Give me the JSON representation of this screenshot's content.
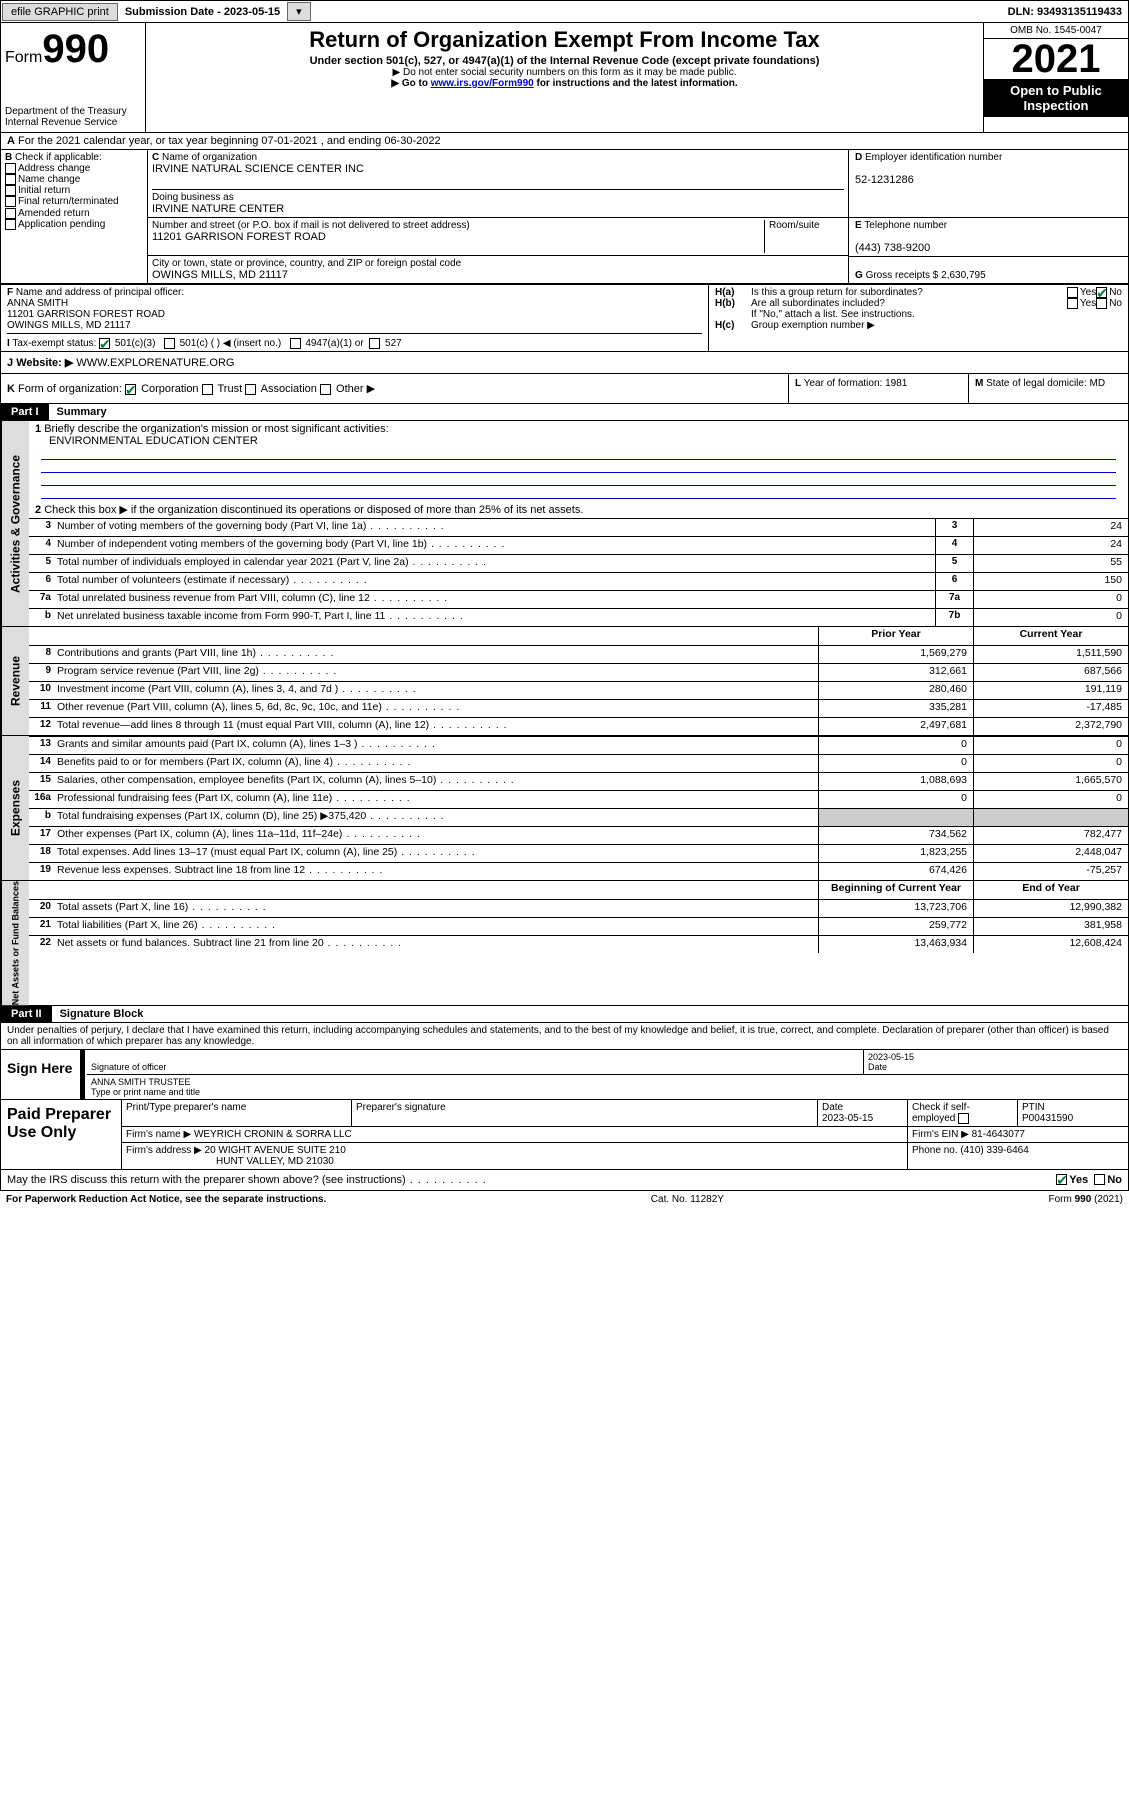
{
  "top": {
    "efile": "efile GRAPHIC print",
    "subdate_lbl": "Submission Date - 2023-05-15",
    "dln": "DLN: 93493135119433"
  },
  "header": {
    "form_label": "Form",
    "form_num": "990",
    "title": "Return of Organization Exempt From Income Tax",
    "sub1": "Under section 501(c), 527, or 4947(a)(1) of the Internal Revenue Code (except private foundations)",
    "sub2": "Do not enter social security numbers on this form as it may be made public.",
    "sub3": "Go to ",
    "sub3_link": "www.irs.gov/Form990",
    "sub3_tail": " for instructions and the latest information.",
    "dept": "Department of the Treasury",
    "irs": "Internal Revenue Service",
    "omb": "OMB No. 1545-0047",
    "year": "2021",
    "otp": "Open to Public Inspection"
  },
  "A": {
    "text": "For the 2021 calendar year, or tax year beginning 07-01-2021   , and ending 06-30-2022"
  },
  "B": {
    "label": "Check if applicable:",
    "items": [
      "Address change",
      "Name change",
      "Initial return",
      "Final return/terminated",
      "Amended return",
      "Application pending"
    ]
  },
  "C": {
    "name_lbl": "Name of organization",
    "name": "IRVINE NATURAL SCIENCE CENTER INC",
    "dba_lbl": "Doing business as",
    "dba": "IRVINE NATURE CENTER",
    "addr_lbl": "Number and street (or P.O. box if mail is not delivered to street address)",
    "room_lbl": "Room/suite",
    "addr": "11201 GARRISON FOREST ROAD",
    "city_lbl": "City or town, state or province, country, and ZIP or foreign postal code",
    "city": "OWINGS MILLS, MD  21117"
  },
  "D": {
    "lbl": "Employer identification number",
    "val": "52-1231286"
  },
  "E": {
    "lbl": "Telephone number",
    "val": "(443) 738-9200"
  },
  "G": {
    "lbl": "Gross receipts $",
    "val": "2,630,795"
  },
  "F": {
    "lbl": "Name and address of principal officer:",
    "name": "ANNA SMITH",
    "addr1": "11201 GARRISON FOREST ROAD",
    "addr2": "OWINGS MILLS, MD  21117"
  },
  "H": {
    "a": "Is this a group return for subordinates?",
    "yes": "Yes",
    "no": "No",
    "b": "Are all subordinates included?",
    "b2": "If \"No,\" attach a list. See instructions.",
    "c": "Group exemption number ▶"
  },
  "I": {
    "lbl": "Tax-exempt status:",
    "o1": "501(c)(3)",
    "o2": "501(c) (  ) ◀ (insert no.)",
    "o3": "4947(a)(1) or",
    "o4": "527"
  },
  "J": {
    "lbl": "Website: ▶",
    "val": "WWW.EXPLORENATURE.ORG"
  },
  "K": {
    "lbl": "Form of organization:",
    "o1": "Corporation",
    "o2": "Trust",
    "o3": "Association",
    "o4": "Other ▶"
  },
  "L": {
    "lbl": "Year of formation:",
    "val": "1981"
  },
  "M": {
    "lbl": "State of legal domicile:",
    "val": "MD"
  },
  "part1": {
    "title": "Part I",
    "subtitle": "Summary",
    "l1": "Briefly describe the organization's mission or most significant activities:",
    "l1v": "ENVIRONMENTAL EDUCATION CENTER",
    "l2": "Check this box ▶          if the organization discontinued its operations or disposed of more than 25% of its net assets.",
    "rows_gov": [
      {
        "n": "3",
        "t": "Number of voting members of the governing body (Part VI, line 1a)",
        "c": "3",
        "v": "24"
      },
      {
        "n": "4",
        "t": "Number of independent voting members of the governing body (Part VI, line 1b)",
        "c": "4",
        "v": "24"
      },
      {
        "n": "5",
        "t": "Total number of individuals employed in calendar year 2021 (Part V, line 2a)",
        "c": "5",
        "v": "55"
      },
      {
        "n": "6",
        "t": "Total number of volunteers (estimate if necessary)",
        "c": "6",
        "v": "150"
      },
      {
        "n": "7a",
        "t": "Total unrelated business revenue from Part VIII, column (C), line 12",
        "c": "7a",
        "v": "0"
      },
      {
        "n": "b",
        "t": "Net unrelated business taxable income from Form 990-T, Part I, line 11",
        "c": "7b",
        "v": "0"
      }
    ],
    "hdr_prior": "Prior Year",
    "hdr_curr": "Current Year",
    "rows_rev": [
      {
        "n": "8",
        "t": "Contributions and grants (Part VIII, line 1h)",
        "p": "1,569,279",
        "c": "1,511,590"
      },
      {
        "n": "9",
        "t": "Program service revenue (Part VIII, line 2g)",
        "p": "312,661",
        "c": "687,566"
      },
      {
        "n": "10",
        "t": "Investment income (Part VIII, column (A), lines 3, 4, and 7d )",
        "p": "280,460",
        "c": "191,119"
      },
      {
        "n": "11",
        "t": "Other revenue (Part VIII, column (A), lines 5, 6d, 8c, 9c, 10c, and 11e)",
        "p": "335,281",
        "c": "-17,485"
      },
      {
        "n": "12",
        "t": "Total revenue—add lines 8 through 11 (must equal Part VIII, column (A), line 12)",
        "p": "2,497,681",
        "c": "2,372,790"
      }
    ],
    "rows_exp": [
      {
        "n": "13",
        "t": "Grants and similar amounts paid (Part IX, column (A), lines 1–3 )",
        "p": "0",
        "c": "0"
      },
      {
        "n": "14",
        "t": "Benefits paid to or for members (Part IX, column (A), line 4)",
        "p": "0",
        "c": "0"
      },
      {
        "n": "15",
        "t": "Salaries, other compensation, employee benefits (Part IX, column (A), lines 5–10)",
        "p": "1,088,693",
        "c": "1,665,570"
      },
      {
        "n": "16a",
        "t": "Professional fundraising fees (Part IX, column (A), line 11e)",
        "p": "0",
        "c": "0"
      },
      {
        "n": "b",
        "t": "Total fundraising expenses (Part IX, column (D), line 25) ▶375,420",
        "p": "",
        "c": "",
        "sh": true
      },
      {
        "n": "17",
        "t": "Other expenses (Part IX, column (A), lines 11a–11d, 11f–24e)",
        "p": "734,562",
        "c": "782,477"
      },
      {
        "n": "18",
        "t": "Total expenses. Add lines 13–17 (must equal Part IX, column (A), line 25)",
        "p": "1,823,255",
        "c": "2,448,047"
      },
      {
        "n": "19",
        "t": "Revenue less expenses. Subtract line 18 from line 12",
        "p": "674,426",
        "c": "-75,257"
      }
    ],
    "hdr_beg": "Beginning of Current Year",
    "hdr_end": "End of Year",
    "rows_net": [
      {
        "n": "20",
        "t": "Total assets (Part X, line 16)",
        "p": "13,723,706",
        "c": "12,990,382"
      },
      {
        "n": "21",
        "t": "Total liabilities (Part X, line 26)",
        "p": "259,772",
        "c": "381,958"
      },
      {
        "n": "22",
        "t": "Net assets or fund balances. Subtract line 21 from line 20",
        "p": "13,463,934",
        "c": "12,608,424"
      }
    ],
    "vlabels": {
      "gov": "Activities & Governance",
      "rev": "Revenue",
      "exp": "Expenses",
      "net": "Net Assets or Fund Balances"
    }
  },
  "part2": {
    "title": "Part II",
    "subtitle": "Signature Block",
    "decl": "Under penalties of perjury, I declare that I have examined this return, including accompanying schedules and statements, and to the best of my knowledge and belief, it is true, correct, and complete. Declaration of preparer (other than officer) is based on all information of which preparer has any knowledge.",
    "sign_here": "Sign Here",
    "sig_off": "Signature of officer",
    "date": "Date",
    "date_v": "2023-05-15",
    "name_title": "ANNA SMITH  TRUSTEE",
    "name_lbl": "Type or print name and title",
    "paid": "Paid Preparer Use Only",
    "p_name": "Print/Type preparer's name",
    "p_sig": "Preparer's signature",
    "p_date_l": "Date",
    "p_date": "2023-05-15",
    "p_chk": "Check          if self-employed",
    "ptin_l": "PTIN",
    "ptin": "P00431590",
    "firm_l": "Firm's name    ▶",
    "firm": "WEYRICH CRONIN & SORRA LLC",
    "ein_l": "Firm's EIN ▶",
    "ein": "81-4643077",
    "addr_l": "Firm's address ▶",
    "addr1": "20 WIGHT AVENUE SUITE 210",
    "addr2": "HUNT VALLEY, MD  21030",
    "ph_l": "Phone no.",
    "ph": "(410) 339-6464",
    "may": "May the IRS discuss this return with the preparer shown above? (see instructions)"
  },
  "footer": {
    "pra": "For Paperwork Reduction Act Notice, see the separate instructions.",
    "cat": "Cat. No. 11282Y",
    "form": "Form 990 (2021)"
  }
}
